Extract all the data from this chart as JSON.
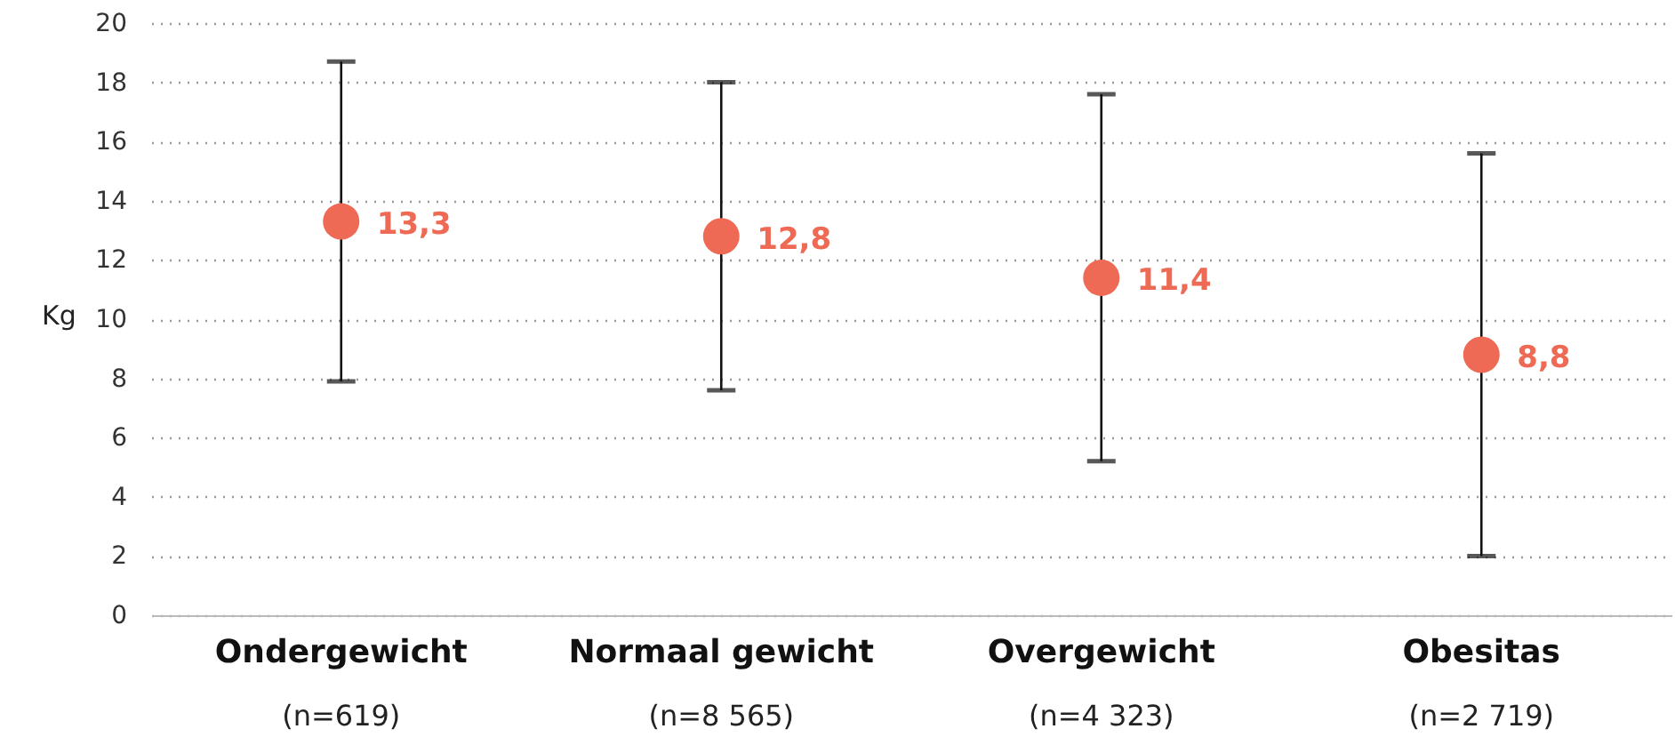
{
  "chart_data": {
    "type": "scatter",
    "ylabel": "Kg",
    "categories": [
      "Ondergewicht",
      "Normaal gewicht",
      "Overgewicht",
      "Obesitas"
    ],
    "series": [
      {
        "color": "#ee6a55",
        "values": [
          13.3,
          12.8,
          11.4,
          8.8
        ],
        "value_labels": [
          "13,3",
          "12,8",
          "11,4",
          "8,8"
        ],
        "errors": [
          [
            7.9,
            18.7
          ],
          [
            7.6,
            18.0
          ],
          [
            5.2,
            17.6
          ],
          [
            2.0,
            15.6
          ]
        ]
      }
    ],
    "ylim": [
      0,
      20
    ],
    "yticks": [
      0,
      2,
      4,
      6,
      8,
      10,
      12,
      14,
      16,
      18,
      20
    ],
    "grid": "y",
    "marker": "circle",
    "annotations": [
      "(n=619)",
      "(n=8 565)",
      "(n=4 323)",
      "(n=2 719)"
    ]
  }
}
